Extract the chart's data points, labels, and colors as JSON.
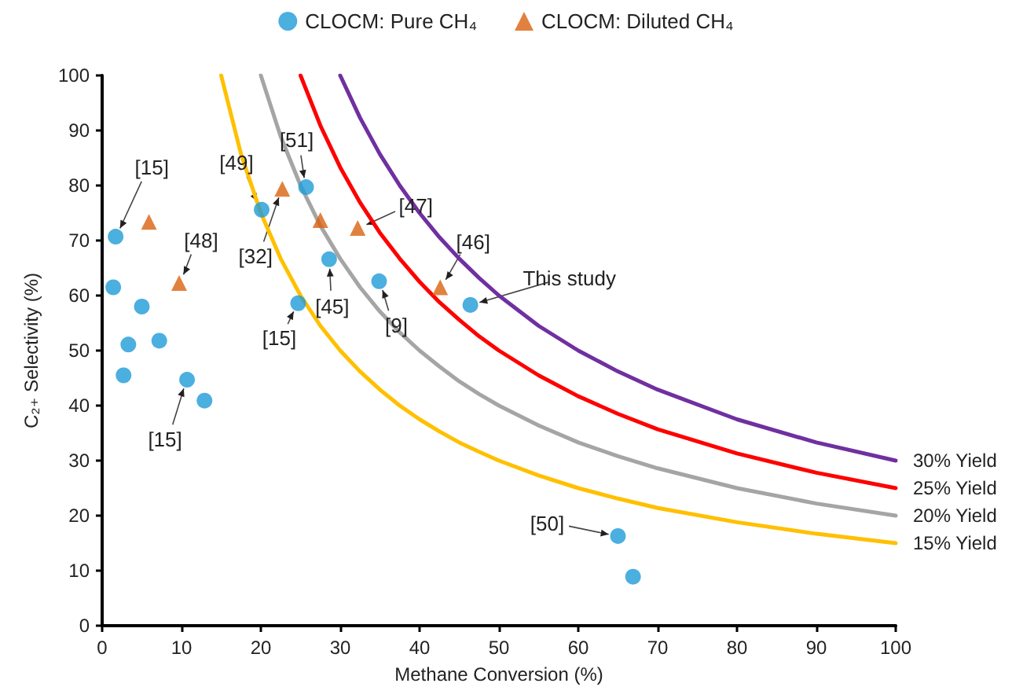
{
  "chart_data": {
    "type": "scatter",
    "xlabel": "Methane Conversion (%)",
    "ylabel": "C₂₊ Selectivity (%)",
    "xlim": [
      0,
      100
    ],
    "xticks": [
      0,
      10,
      20,
      30,
      40,
      50,
      60,
      70,
      80,
      90,
      100
    ],
    "ylim": [
      0,
      100
    ],
    "yticks": [
      0,
      10,
      20,
      30,
      40,
      50,
      60,
      70,
      80,
      90,
      100
    ],
    "grid": false,
    "legend": "top",
    "series": [
      {
        "name": "CLOCM: Pure CH₄",
        "type": "scatter",
        "marker": "circle",
        "color": "#1e9bd7",
        "x": [
          1.7,
          1.4,
          5.0,
          3.3,
          7.2,
          2.7,
          10.7,
          12.9,
          20.1,
          25.7,
          24.7,
          28.6,
          34.9,
          46.4,
          65.0,
          66.9
        ],
        "values": [
          70.7,
          61.5,
          58,
          51.1,
          51.8,
          45.5,
          44.7,
          40.9,
          75.6,
          79.7,
          58.6,
          66.6,
          62.6,
          58.3,
          16.3,
          8.9
        ]
      },
      {
        "name": "CLOCM: Diluted CH₄",
        "type": "scatter",
        "marker": "triangle",
        "color": "#d9620f",
        "x": [
          5.9,
          9.7,
          22.7,
          27.5,
          32.2,
          42.6
        ],
        "values": [
          73.4,
          62.3,
          79.4,
          73.7,
          72.3,
          61.5
        ]
      },
      {
        "name": "30% Yield",
        "type": "line",
        "marker": "none",
        "color": "#7030a0",
        "x": [
          30,
          32.5,
          35,
          37.5,
          40,
          42.5,
          45,
          47.5,
          50,
          55,
          60,
          65,
          70,
          80,
          90,
          100
        ],
        "values": [
          100,
          92.3,
          85.7,
          80,
          75,
          70.6,
          66.7,
          63.2,
          60,
          54.5,
          50,
          46.2,
          42.9,
          37.5,
          33.3,
          30
        ]
      },
      {
        "name": "25% Yield",
        "type": "line",
        "marker": "none",
        "color": "#ff0000",
        "x": [
          25,
          27.5,
          30,
          32.5,
          35,
          37.5,
          40,
          42.5,
          45,
          47.5,
          50,
          55,
          60,
          65,
          70,
          80,
          90,
          100
        ],
        "values": [
          100,
          90.9,
          83.3,
          76.9,
          71.4,
          66.7,
          62.5,
          58.8,
          55.6,
          52.6,
          50,
          45.5,
          41.7,
          38.5,
          35.7,
          31.3,
          27.8,
          25
        ]
      },
      {
        "name": "20% Yield",
        "type": "line",
        "marker": "none",
        "color": "#a5a5a5",
        "x": [
          20,
          22.5,
          25,
          27.5,
          30,
          32.5,
          35,
          37.5,
          40,
          42.5,
          45,
          47.5,
          50,
          55,
          60,
          65,
          70,
          80,
          90,
          100
        ],
        "values": [
          100,
          88.9,
          80,
          72.7,
          66.7,
          61.5,
          57.1,
          53.3,
          50,
          47.1,
          44.4,
          42.1,
          40,
          36.4,
          33.3,
          30.8,
          28.6,
          25,
          22.2,
          20
        ]
      },
      {
        "name": "15% Yield",
        "type": "line",
        "marker": "none",
        "color": "#ffc000",
        "x": [
          15,
          17.5,
          20,
          22.5,
          25,
          27.5,
          30,
          32.5,
          35,
          37.5,
          40,
          42.5,
          45,
          47.5,
          50,
          55,
          60,
          65,
          70,
          80,
          90,
          100
        ],
        "values": [
          100,
          85.7,
          75,
          66.7,
          60,
          54.5,
          50,
          46.2,
          42.9,
          40,
          37.5,
          35.3,
          33.3,
          31.6,
          30,
          27.3,
          25,
          23.1,
          21.4,
          18.8,
          16.7,
          15
        ]
      }
    ],
    "annotations": [
      {
        "text": "[15]",
        "x": 1.7,
        "y": 70.7
      },
      {
        "text": "[48]",
        "x": 9.7,
        "y": 62.3
      },
      {
        "text": "[15]",
        "x": 10.7,
        "y": 44.7
      },
      {
        "text": "[49]",
        "x": 20.1,
        "y": 75.6
      },
      {
        "text": "[51]",
        "x": 25.7,
        "y": 79.7
      },
      {
        "text": "[32]",
        "x": 22.7,
        "y": 79.4
      },
      {
        "text": "[15]",
        "x": 24.7,
        "y": 58.6
      },
      {
        "text": "[45]",
        "x": 28.6,
        "y": 66.6
      },
      {
        "text": "[9]",
        "x": 34.9,
        "y": 62.6
      },
      {
        "text": "[47]",
        "x": 32.2,
        "y": 72.3
      },
      {
        "text": "[46]",
        "x": 42.6,
        "y": 61.5
      },
      {
        "text": "This study",
        "x": 46.4,
        "y": 58.3
      },
      {
        "text": "[50]",
        "x": 65.0,
        "y": 16.3
      }
    ]
  }
}
